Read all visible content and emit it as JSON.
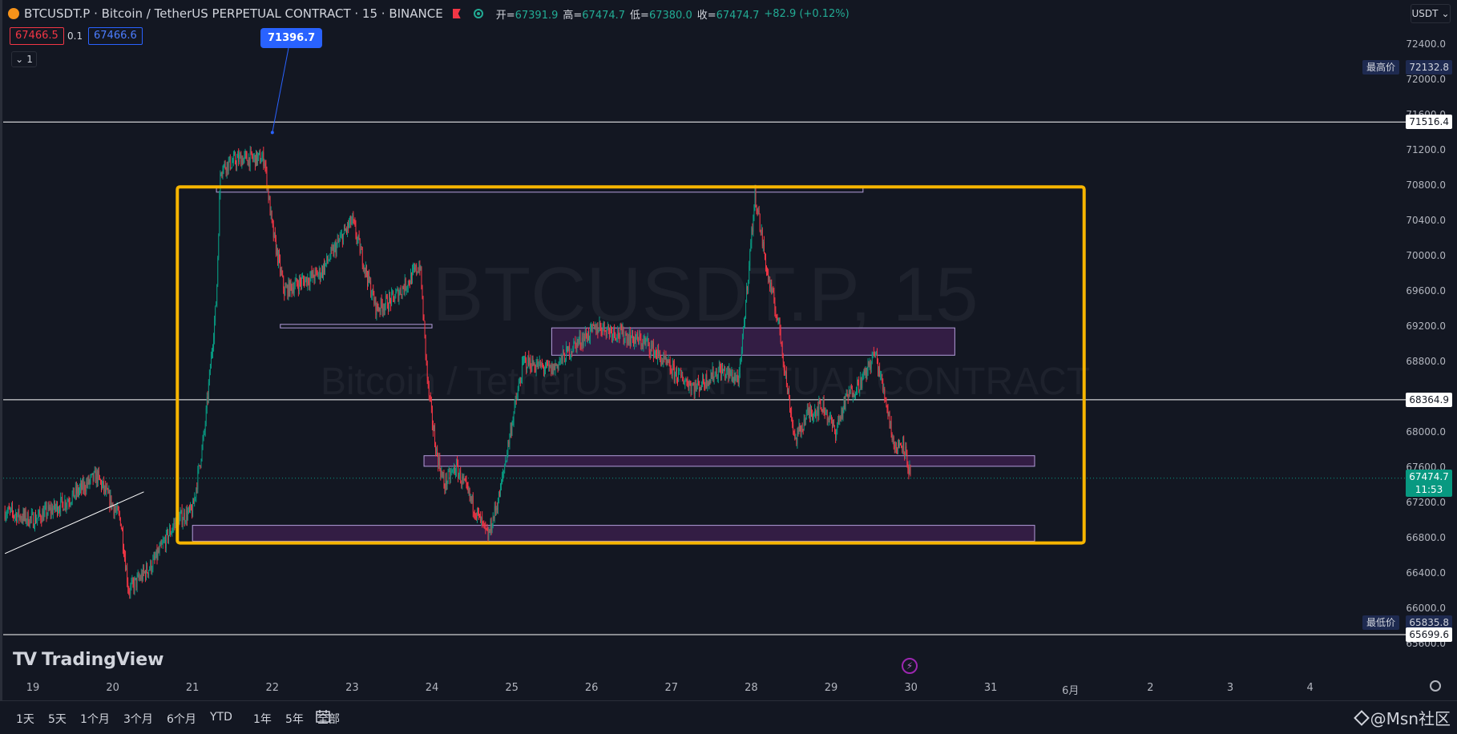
{
  "header": {
    "symbol_title": "BTCUSDT.P · Bitcoin / TetherUS PERPETUAL CONTRACT · 15 · BINANCE",
    "ohlc": [
      {
        "key": "开=",
        "value": "67391.9"
      },
      {
        "key": "高=",
        "value": "67474.7"
      },
      {
        "key": "低=",
        "value": "67380.0"
      },
      {
        "key": "收=",
        "value": "67474.7"
      }
    ],
    "change": "+82.9 (+0.12%)",
    "sell_price": "67466.5",
    "spread": "0.1",
    "buy_price": "67466.6",
    "collapse_count": "1",
    "currency": "USDT"
  },
  "tooltip": "71396.7",
  "watermark_symbol": "BTCUSDT.P, 15",
  "watermark_desc": "Bitcoin / TetherUS PERPETUAL CONTRACT",
  "axis_tags": {
    "high_label": "最高价",
    "high_value": "72132.8",
    "low_label": "最低价",
    "low_value": "65835.8",
    "line1": "71516.4",
    "line2": "68364.9",
    "line3": "65699.6",
    "current_price": "67474.7",
    "countdown": "11:53"
  },
  "range_buttons": [
    "1天",
    "5天",
    "1个月",
    "3个月",
    "6个月",
    "YTD",
    "1年",
    "5年",
    "全部"
  ],
  "brand": "TradingView",
  "footer_watermark": "@Msn社区",
  "colors": {
    "background": "#131722",
    "up": "#089981",
    "down": "#f23645",
    "highlight_box": "#f7b500",
    "zone_fill": "#3a1f4a",
    "zone_border": "#b39ddb",
    "accent": "#2962ff"
  },
  "chart_data": {
    "type": "candlestick",
    "x_tick_labels": [
      "19",
      "20",
      "21",
      "22",
      "23",
      "24",
      "25",
      "26",
      "27",
      "28",
      "29",
      "30",
      "31",
      "6月",
      "2",
      "3",
      "4"
    ],
    "y_tick_labels": [
      "72400.0",
      "72000.0",
      "71600.0",
      "71200.0",
      "70800.0",
      "70400.0",
      "70000.0",
      "69600.0",
      "69200.0",
      "68800.0",
      "68400.0",
      "68000.0",
      "67600.0",
      "67200.0",
      "66800.0",
      "66400.0",
      "66000.0",
      "65600.0"
    ],
    "ylim": [
      65600,
      72500
    ],
    "price_path": [
      {
        "day": 18.65,
        "price": 67100
      },
      {
        "day": 19.0,
        "price": 67000
      },
      {
        "day": 19.4,
        "price": 67200
      },
      {
        "day": 19.8,
        "price": 67500
      },
      {
        "day": 20.1,
        "price": 67000
      },
      {
        "day": 20.2,
        "price": 66200
      },
      {
        "day": 20.5,
        "price": 66500
      },
      {
        "day": 20.8,
        "price": 67000
      },
      {
        "day": 21.0,
        "price": 67100
      },
      {
        "day": 21.15,
        "price": 68000
      },
      {
        "day": 21.3,
        "price": 69500
      },
      {
        "day": 21.35,
        "price": 71000
      },
      {
        "day": 21.6,
        "price": 71100
      },
      {
        "day": 21.9,
        "price": 71100
      },
      {
        "day": 22.0,
        "price": 70300
      },
      {
        "day": 22.15,
        "price": 69600
      },
      {
        "day": 22.35,
        "price": 69700
      },
      {
        "day": 22.6,
        "price": 69800
      },
      {
        "day": 23.0,
        "price": 70400
      },
      {
        "day": 23.3,
        "price": 69400
      },
      {
        "day": 23.5,
        "price": 69500
      },
      {
        "day": 23.7,
        "price": 69700
      },
      {
        "day": 23.85,
        "price": 69900
      },
      {
        "day": 23.95,
        "price": 68500
      },
      {
        "day": 24.05,
        "price": 67800
      },
      {
        "day": 24.15,
        "price": 67400
      },
      {
        "day": 24.3,
        "price": 67600
      },
      {
        "day": 24.5,
        "price": 67200
      },
      {
        "day": 24.7,
        "price": 66800
      },
      {
        "day": 24.85,
        "price": 67300
      },
      {
        "day": 25.0,
        "price": 68100
      },
      {
        "day": 25.15,
        "price": 68800
      },
      {
        "day": 25.5,
        "price": 68700
      },
      {
        "day": 25.8,
        "price": 69000
      },
      {
        "day": 26.1,
        "price": 69200
      },
      {
        "day": 26.4,
        "price": 69100
      },
      {
        "day": 26.7,
        "price": 69000
      },
      {
        "day": 27.0,
        "price": 68700
      },
      {
        "day": 27.3,
        "price": 68500
      },
      {
        "day": 27.6,
        "price": 68700
      },
      {
        "day": 27.85,
        "price": 68600
      },
      {
        "day": 28.0,
        "price": 70200
      },
      {
        "day": 28.05,
        "price": 70700
      },
      {
        "day": 28.2,
        "price": 69800
      },
      {
        "day": 28.35,
        "price": 69200
      },
      {
        "day": 28.45,
        "price": 68500
      },
      {
        "day": 28.55,
        "price": 67900
      },
      {
        "day": 28.7,
        "price": 68200
      },
      {
        "day": 28.9,
        "price": 68300
      },
      {
        "day": 29.05,
        "price": 68000
      },
      {
        "day": 29.2,
        "price": 68400
      },
      {
        "day": 29.4,
        "price": 68600
      },
      {
        "day": 29.55,
        "price": 68900
      },
      {
        "day": 29.7,
        "price": 68300
      },
      {
        "day": 29.8,
        "price": 67800
      },
      {
        "day": 29.9,
        "price": 67900
      },
      {
        "day": 30.0,
        "price": 67470
      }
    ],
    "horizontal_lines": [
      71516.4,
      68364.9,
      65699.6
    ],
    "current_price": 67474.7,
    "all_time_high_marker": 72132.8,
    "all_time_low_marker": 65835.8,
    "zones": [
      {
        "start_day": 21.3,
        "end_day": 29.4,
        "low": 70720,
        "high": 70780,
        "filled": false
      },
      {
        "start_day": 22.1,
        "end_day": 24.0,
        "low": 69180,
        "high": 69220,
        "filled": false
      },
      {
        "start_day": 25.5,
        "end_day": 30.55,
        "low": 68870,
        "high": 69180,
        "filled": true
      },
      {
        "start_day": 23.9,
        "end_day": 31.55,
        "low": 67610,
        "high": 67730,
        "filled": true
      },
      {
        "start_day": 21.0,
        "end_day": 31.55,
        "low": 66760,
        "high": 66940,
        "filled": true
      }
    ],
    "highlight_box": {
      "start_day": 20.81,
      "end_day": 32.17,
      "low": 66740,
      "high": 70780
    },
    "trendline": {
      "start_day": 18.65,
      "start_price": 66620,
      "end_day": 20.39,
      "end_price": 67320
    },
    "annotation": {
      "day": 22.0,
      "price": 71396.7
    }
  }
}
